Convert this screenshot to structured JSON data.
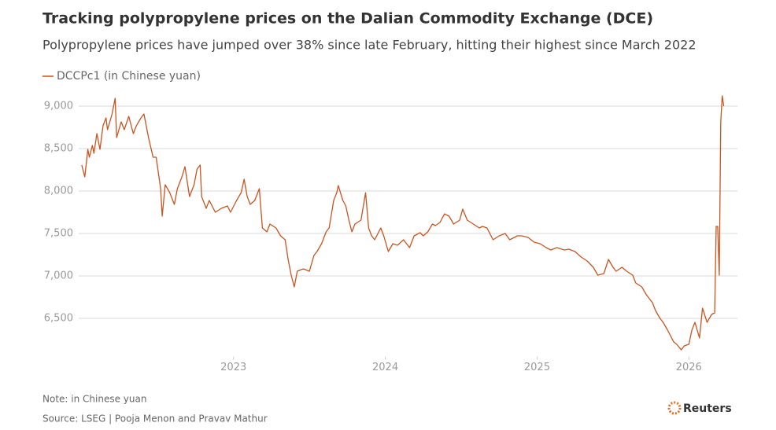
{
  "chart_data": {
    "type": "line",
    "title": "Tracking polypropylene prices on the Dalian Commodity Exchange (DCE)",
    "subtitle": "Polypropylene prices have jumped over 38% since late February, hitting their highest since March 2022",
    "note": "Note: in Chinese yuan",
    "source": "Source: LSEG | Pooja Menon and Pravav Mathur",
    "brand": "Reuters",
    "x": [
      2022.0,
      2022.02,
      2022.04,
      2022.05,
      2022.07,
      2022.08,
      2022.1,
      2022.12,
      2022.14,
      2022.16,
      2022.17,
      2022.2,
      2022.22,
      2022.23,
      2022.26,
      2022.28,
      2022.31,
      2022.34,
      2022.36,
      2022.39,
      2022.41,
      2022.44,
      2022.47,
      2022.49,
      2022.52,
      2022.53,
      2022.55,
      2022.58,
      2022.61,
      2022.63,
      2022.66,
      2022.68,
      2022.71,
      2022.74,
      2022.76,
      2022.78,
      2022.79,
      2022.82,
      2022.84,
      2022.88,
      2022.92,
      2022.96,
      2022.98,
      2023.02,
      2023.05,
      2023.07,
      2023.09,
      2023.11,
      2023.14,
      2023.17,
      2023.19,
      2023.22,
      2023.24,
      2023.28,
      2023.31,
      2023.34,
      2023.36,
      2023.38,
      2023.4,
      2023.42,
      2023.46,
      2023.5,
      2023.53,
      2023.55,
      2023.58,
      2023.61,
      2023.63,
      2023.66,
      2023.68,
      2023.69,
      2023.72,
      2023.74,
      2023.76,
      2023.78,
      2023.8,
      2023.84,
      2023.87,
      2023.89,
      2023.91,
      2023.93,
      2023.97,
      2023.99,
      2024.02,
      2024.05,
      2024.08,
      2024.12,
      2024.16,
      2024.19,
      2024.23,
      2024.25,
      2024.28,
      2024.31,
      2024.33,
      2024.36,
      2024.39,
      2024.42,
      2024.45,
      2024.49,
      2024.51,
      2024.54,
      2024.58,
      2024.62,
      2024.64,
      2024.67,
      2024.71,
      2024.75,
      2024.79,
      2024.82,
      2024.87,
      2024.9,
      2024.94,
      2024.98,
      2025.02,
      2025.06,
      2025.09,
      2025.13,
      2025.18,
      2025.21,
      2025.25,
      2025.29,
      2025.33,
      2025.37,
      2025.4,
      2025.44,
      2025.47,
      2025.5,
      2025.52,
      2025.56,
      2025.59,
      2025.63,
      2025.65,
      2025.69,
      2025.72,
      2025.76,
      2025.78,
      2025.81,
      2025.83,
      2025.86,
      2025.9,
      2025.92,
      2025.95,
      2025.97,
      2026.0,
      2026.02,
      2026.04,
      2026.07,
      2026.09,
      2026.12,
      2026.15,
      2026.17,
      2026.18,
      2026.19,
      2026.2,
      2026.21,
      2026.22,
      2026.23
    ],
    "series": [
      {
        "name": "DCCPc1 (in Chinese yuan)",
        "color": "#c9541f",
        "values": [
          8306,
          8167,
          8491,
          8398,
          8537,
          8444,
          8676,
          8491,
          8769,
          8861,
          8722,
          8907,
          9093,
          8630,
          8815,
          8722,
          8880,
          8676,
          8769,
          8861,
          8907,
          8630,
          8398,
          8398,
          8028,
          7704,
          8074,
          7981,
          7843,
          8028,
          8167,
          8287,
          7935,
          8074,
          8259,
          8306,
          7935,
          7796,
          7889,
          7750,
          7796,
          7824,
          7750,
          7889,
          7981,
          8139,
          7935,
          7843,
          7889,
          8028,
          7565,
          7519,
          7611,
          7565,
          7472,
          7426,
          7194,
          7009,
          6870,
          7056,
          7083,
          7056,
          7241,
          7287,
          7380,
          7519,
          7565,
          7889,
          7981,
          8065,
          7889,
          7824,
          7657,
          7519,
          7611,
          7657,
          7981,
          7565,
          7472,
          7426,
          7565,
          7472,
          7287,
          7380,
          7361,
          7426,
          7333,
          7472,
          7509,
          7472,
          7519,
          7611,
          7593,
          7630,
          7731,
          7704,
          7611,
          7657,
          7787,
          7657,
          7611,
          7565,
          7583,
          7565,
          7426,
          7472,
          7500,
          7426,
          7472,
          7472,
          7454,
          7398,
          7380,
          7333,
          7306,
          7333,
          7306,
          7315,
          7287,
          7222,
          7176,
          7102,
          7009,
          7028,
          7194,
          7102,
          7056,
          7102,
          7056,
          7009,
          6917,
          6870,
          6778,
          6685,
          6593,
          6500,
          6454,
          6361,
          6222,
          6194,
          6130,
          6176,
          6194,
          6361,
          6454,
          6269,
          6620,
          6454,
          6546,
          6565,
          7583,
          7583,
          7009,
          8815,
          9120,
          9000
        ]
      }
    ],
    "xlim": [
      2021.98,
      2026.32
    ],
    "xticks": [
      2023,
      2024,
      2025,
      2026
    ],
    "ylim": [
      6050,
      9150
    ],
    "yticks": [
      {
        "value": 6500,
        "label": "6,500"
      },
      {
        "value": 7000,
        "label": "7,000"
      },
      {
        "value": 7500,
        "label": "7,500"
      },
      {
        "value": 8000,
        "label": "8,000"
      },
      {
        "value": 8500,
        "label": "8,500"
      },
      {
        "value": 9000,
        "label": "9,000"
      }
    ],
    "grid": true
  }
}
